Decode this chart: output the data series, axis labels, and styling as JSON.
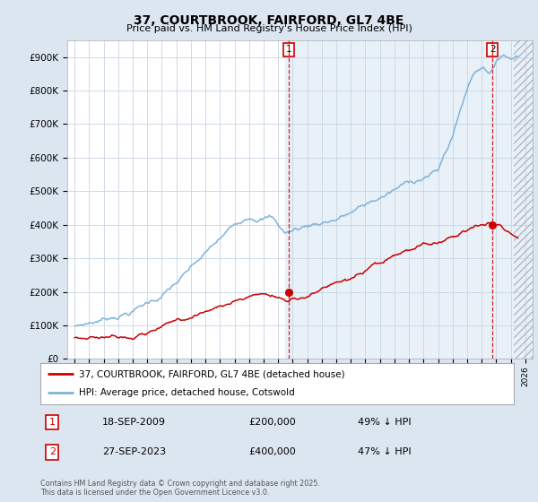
{
  "title": "37, COURTBROOK, FAIRFORD, GL7 4BE",
  "subtitle": "Price paid vs. HM Land Registry's House Price Index (HPI)",
  "ylim": [
    0,
    950000
  ],
  "yticks": [
    0,
    100000,
    200000,
    300000,
    400000,
    500000,
    600000,
    700000,
    800000,
    900000
  ],
  "ytick_labels": [
    "£0",
    "£100K",
    "£200K",
    "£300K",
    "£400K",
    "£500K",
    "£600K",
    "£700K",
    "£800K",
    "£900K"
  ],
  "xlim_start": 1994.5,
  "xlim_end": 2026.5,
  "hpi_color": "#7fb3d9",
  "price_color": "#cc0000",
  "marker1_x": 2009.72,
  "marker1_y": 200000,
  "marker2_x": 2023.74,
  "marker2_y": 400000,
  "vline_shade_start": 2009.5,
  "future_start": 2025.2,
  "legend_line1": "37, COURTBROOK, FAIRFORD, GL7 4BE (detached house)",
  "legend_line2": "HPI: Average price, detached house, Cotswold",
  "annotation1_date": "18-SEP-2009",
  "annotation1_price": "£200,000",
  "annotation1_hpi": "49% ↓ HPI",
  "annotation2_date": "27-SEP-2023",
  "annotation2_price": "£400,000",
  "annotation2_hpi": "47% ↓ HPI",
  "footer": "Contains HM Land Registry data © Crown copyright and database right 2025.\nThis data is licensed under the Open Government Licence v3.0.",
  "bg_color": "#dce6f1",
  "plot_bg_color": "#ffffff",
  "shade_color": "#dce6f1"
}
